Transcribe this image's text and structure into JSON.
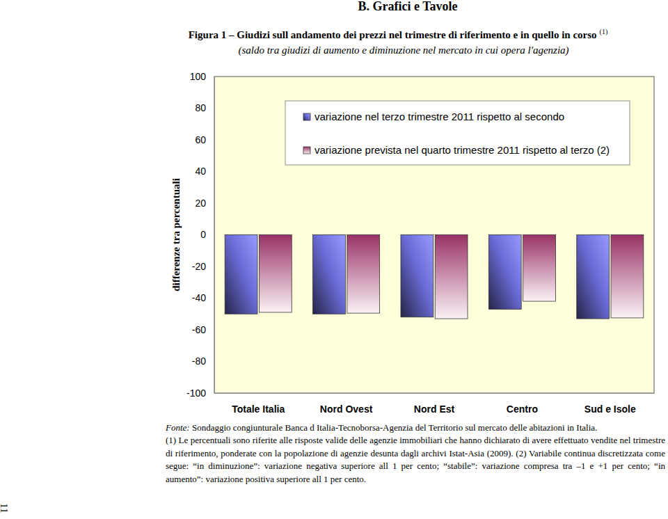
{
  "chart_data": {
    "type": "bar",
    "header": "B. Grafici e Tavole",
    "title": "Figura 1 – Giudizi sull andamento dei prezzi nel trimestre di riferimento e in quello in corso",
    "title_note": "(1)",
    "subtitle": "(saldo tra giudizi di aumento e diminuzione nel mercato in cui opera l'agenzia)",
    "y_label": "differenze tra percentuali",
    "categories": [
      "Totale Italia",
      "Nord Ovest",
      "Nord Est",
      "Centro",
      "Sud e Isole"
    ],
    "series": [
      {
        "name": "variazione nel terzo trimestre 2011 rispetto al secondo",
        "color": "#6b6bd6",
        "values": [
          -50,
          -50,
          -52,
          -47,
          -53
        ]
      },
      {
        "name": "variazione prevista nel quarto trimestre 2011 rispetto al terzo (2)",
        "color": "#993366",
        "values": [
          -49,
          -49.5,
          -53,
          -42,
          -52.5
        ]
      }
    ],
    "ylim": [
      -100,
      100
    ],
    "yticks": [
      -100,
      -80,
      -60,
      -40,
      -20,
      0,
      20,
      40,
      60,
      80,
      100
    ],
    "grid": false,
    "legend": "top",
    "source_label": "Fonte:",
    "source": "Sondaggio congiunturale Banca d Italia-Tecnoborsa-Agenzia del Territorio sul mercato delle abitazioni in Italia.",
    "notes": [
      "(1) Le percentuali sono riferite alle risposte valide delle agenzie immobiliari che hanno dichiarato di avere effettuato vendite nel trimestre di riferimento, ponderate con la popolazione di agenzie desunta dagli archivi Istat-Asia (2009).",
      "(2) Variabile continua discretizzata come segue: “in diminuzione”: variazione negativa superiore all 1 per cento; “stabile”: variazione compresa tra –1 e +1 per cento; “in aumento”: variazione positiva superiore all 1 per cento."
    ],
    "page_number": "11"
  }
}
